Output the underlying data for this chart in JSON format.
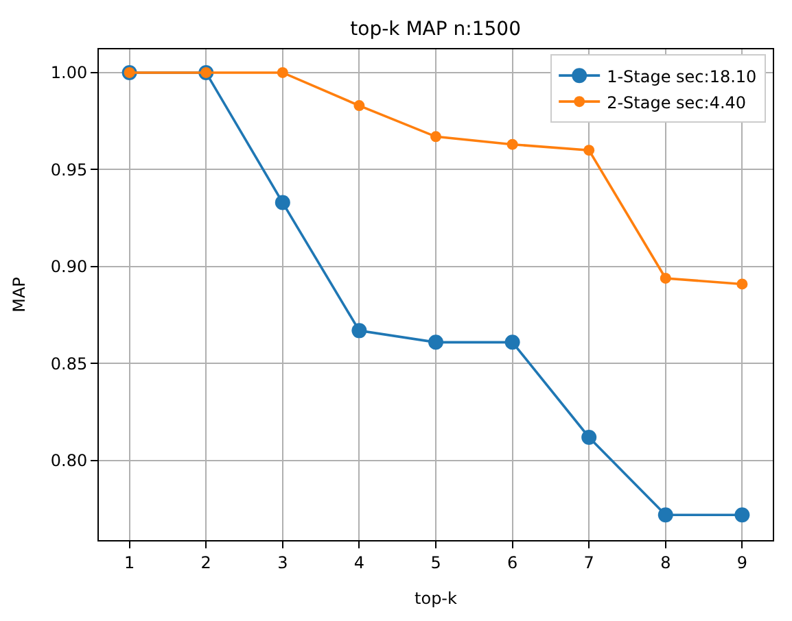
{
  "chart_data": {
    "type": "line",
    "title": "top-k MAP n:1500",
    "xlabel": "top-k",
    "ylabel": "MAP",
    "x": [
      1,
      2,
      3,
      4,
      5,
      6,
      7,
      8,
      9
    ],
    "series": [
      {
        "name": "1-Stage sec:18.10",
        "color": "#1f77b4",
        "values": [
          1.0,
          1.0,
          0.933,
          0.867,
          0.861,
          0.861,
          0.812,
          0.772,
          0.772
        ]
      },
      {
        "name": "2-Stage sec:4.40",
        "color": "#ff7f0e",
        "values": [
          1.0,
          1.0,
          1.0,
          0.983,
          0.967,
          0.963,
          0.96,
          0.894,
          0.891
        ]
      }
    ],
    "xlim": [
      0.6,
      9.4
    ],
    "xticks": [
      1,
      2,
      3,
      4,
      5,
      6,
      7,
      8,
      9
    ],
    "ylim": [
      0.759,
      1.012
    ],
    "yticks": [
      {
        "value": 0.8,
        "label": "0.80"
      },
      {
        "value": 0.85,
        "label": "0.85"
      },
      {
        "value": 0.9,
        "label": "0.90"
      },
      {
        "value": 0.95,
        "label": "0.95"
      },
      {
        "value": 1.0,
        "label": "1.00"
      }
    ],
    "grid": true,
    "legend": "top right",
    "marker": "circle",
    "line_style": "solid"
  }
}
